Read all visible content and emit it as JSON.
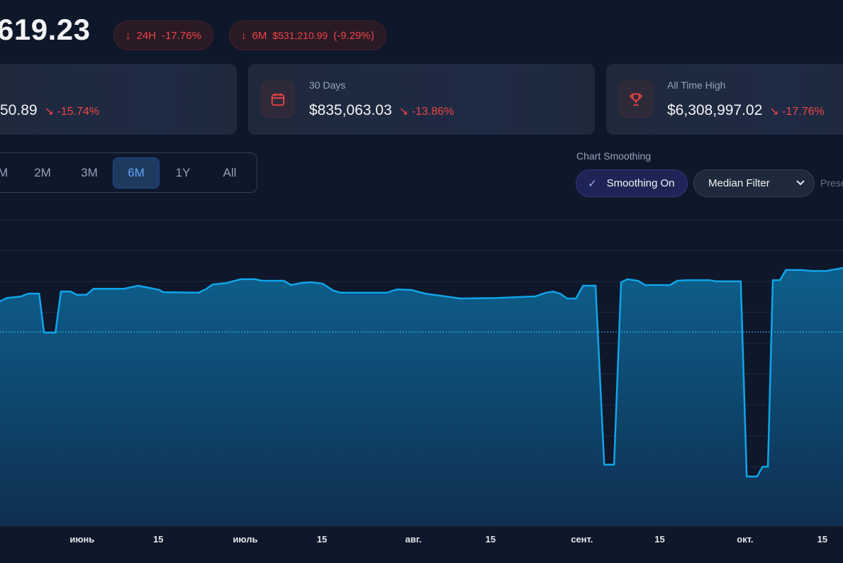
{
  "header": {
    "price": "619.23",
    "badges": [
      {
        "period": "24H",
        "change": "-17.76%"
      },
      {
        "period": "6M",
        "amount": "$531,210.99",
        "change": "(-9.29%)"
      }
    ]
  },
  "cards": [
    {
      "label": "",
      "value": "50.89",
      "change": "-15.74%"
    },
    {
      "label": "30 Days",
      "value": "$835,063.03",
      "change": "-13.86%",
      "icon": "calendar-icon"
    },
    {
      "label": "All Time High",
      "value": "$6,308,997.02",
      "change": "-17.76%",
      "icon": "trophy-icon"
    }
  ],
  "ranges": [
    {
      "label": "M"
    },
    {
      "label": "2M"
    },
    {
      "label": "3M"
    },
    {
      "label": "6M",
      "active": true
    },
    {
      "label": "1Y"
    },
    {
      "label": "All"
    }
  ],
  "smoothing": {
    "title": "Chart Smoothing",
    "toggle": "Smoothing On",
    "filter": "Median Filter",
    "preset": "Prese"
  },
  "colors": {
    "accent": "#0ea5e9",
    "negative": "#ef4444",
    "bg": "#0f172a"
  },
  "chart_data": {
    "type": "area",
    "title": "",
    "xlabel": "",
    "ylabel": "",
    "xlim": [
      0,
      155
    ],
    "ylim": [
      0,
      100
    ],
    "grid": true,
    "reference_line": 63.4,
    "x_ticks": [
      {
        "d": 15.1,
        "label": "июнь",
        "major": true
      },
      {
        "d": 29.1,
        "label": "15"
      },
      {
        "d": 45.1,
        "label": "июль",
        "major": true
      },
      {
        "d": 59.2,
        "label": "15"
      },
      {
        "d": 76,
        "label": "авг.",
        "major": true
      },
      {
        "d": 90.2,
        "label": "15"
      },
      {
        "d": 107,
        "label": "сент.",
        "major": true
      },
      {
        "d": 121.3,
        "label": "15"
      },
      {
        "d": 137,
        "label": "окт.",
        "major": true
      },
      {
        "d": 151.2,
        "label": "15"
      }
    ],
    "series": [
      {
        "name": "smoothed",
        "points": [
          [
            0,
            73.4
          ],
          [
            1.3,
            74.5
          ],
          [
            3.9,
            75
          ],
          [
            5.2,
            75.9
          ],
          [
            7.2,
            75.9
          ],
          [
            8.1,
            63.2
          ],
          [
            10.2,
            63.2
          ],
          [
            11.2,
            76.6
          ],
          [
            13,
            76.6
          ],
          [
            14.1,
            75.5
          ],
          [
            15.9,
            75.5
          ],
          [
            17.2,
            77.5
          ],
          [
            22.8,
            77.5
          ],
          [
            25.4,
            78.5
          ],
          [
            27.4,
            77.8
          ],
          [
            29.3,
            77.1
          ],
          [
            30,
            76.4
          ],
          [
            36.5,
            76.2
          ],
          [
            37.8,
            77.3
          ],
          [
            39.1,
            78.9
          ],
          [
            41.7,
            79.4
          ],
          [
            44.3,
            80.6
          ],
          [
            46.9,
            80.6
          ],
          [
            48.2,
            80.1
          ],
          [
            52.2,
            80.1
          ],
          [
            53.5,
            78.7
          ],
          [
            55.4,
            79.4
          ],
          [
            57.4,
            79.6
          ],
          [
            59.3,
            79.2
          ],
          [
            61.3,
            76.9
          ],
          [
            62.6,
            76.2
          ],
          [
            71.1,
            76.2
          ],
          [
            73,
            77.3
          ],
          [
            75.6,
            77.1
          ],
          [
            78.2,
            75.9
          ],
          [
            84.7,
            74.3
          ],
          [
            91.3,
            74.5
          ],
          [
            98.4,
            75
          ],
          [
            100.4,
            76.2
          ],
          [
            101.7,
            76.6
          ],
          [
            103,
            75.9
          ],
          [
            104.3,
            74.3
          ],
          [
            105.9,
            74.3
          ],
          [
            107.2,
            78.5
          ],
          [
            109.5,
            78.5
          ],
          [
            111.1,
            20.1
          ],
          [
            112.9,
            20.1
          ],
          [
            114.2,
            79.6
          ],
          [
            115.4,
            80.6
          ],
          [
            117.3,
            80.1
          ],
          [
            118.6,
            78.7
          ],
          [
            123.2,
            78.7
          ],
          [
            124.5,
            80.1
          ],
          [
            126.5,
            80.3
          ],
          [
            130.4,
            80.3
          ],
          [
            131.7,
            79.9
          ],
          [
            136.2,
            79.9
          ],
          [
            137.3,
            16.2
          ],
          [
            139.2,
            16.2
          ],
          [
            140.2,
            19.4
          ],
          [
            141.2,
            19.4
          ],
          [
            142.1,
            80.3
          ],
          [
            143.4,
            80.3
          ],
          [
            144.5,
            83.6
          ],
          [
            147.3,
            83.6
          ],
          [
            149.3,
            83.3
          ],
          [
            151.9,
            83.3
          ],
          [
            155,
            84.3
          ]
        ]
      }
    ]
  }
}
